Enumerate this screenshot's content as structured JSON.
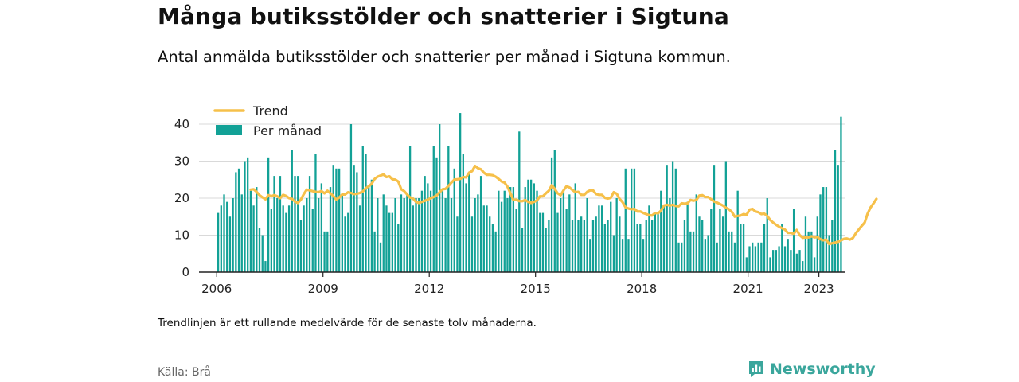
{
  "title": "Många butiksstölder och snatterier i Sigtuna",
  "subtitle": "Antal anmälda butiksstölder och snatterier per månad i Sigtuna kommun.",
  "note": "Trendlinjen är ett rullande medelvärde för de senaste tolv månaderna.",
  "source": "Källa: Brå",
  "brand": "Newsworthy",
  "colors": {
    "bar": "#12a196",
    "trend": "#f6c04a",
    "axis": "#222222",
    "grid": "#d9d9d9",
    "brand": "#3aa69c"
  },
  "chart_data": {
    "type": "bar",
    "title": "",
    "xlabel": "",
    "ylabel": "",
    "ylim": [
      0,
      45
    ],
    "xlim": [
      "2005-07",
      "2023-10"
    ],
    "grid": true,
    "legend_position": "top-left",
    "x_ticks": [
      "2006",
      "2009",
      "2012",
      "2015",
      "2018",
      "2021",
      "2023"
    ],
    "y_ticks": [
      0,
      10,
      20,
      30,
      40
    ],
    "start_month": "2006-01",
    "series": [
      {
        "name": "Per månad",
        "type": "bar",
        "values": [
          16,
          18,
          21,
          19,
          15,
          20,
          27,
          28,
          21,
          30,
          31,
          22,
          18,
          23,
          12,
          10,
          3,
          31,
          17,
          26,
          20,
          26,
          18,
          16,
          18,
          33,
          26,
          26,
          14,
          18,
          20,
          26,
          17,
          32,
          20,
          24,
          11,
          11,
          23,
          29,
          28,
          28,
          21,
          15,
          16,
          40,
          29,
          27,
          18,
          34,
          32,
          23,
          25,
          11,
          20,
          8,
          21,
          18,
          16,
          16,
          20,
          13,
          21,
          20,
          21,
          34,
          18,
          20,
          20,
          22,
          26,
          24,
          22,
          34,
          31,
          40,
          22,
          20,
          34,
          20,
          28,
          15,
          43,
          32,
          24,
          27,
          15,
          20,
          21,
          26,
          18,
          18,
          15,
          13,
          11,
          22,
          19,
          22,
          20,
          23,
          23,
          17,
          38,
          12,
          23,
          25,
          25,
          24,
          22,
          16,
          16,
          12,
          14,
          31,
          33,
          16,
          20,
          22,
          17,
          21,
          14,
          24,
          14,
          15,
          14,
          20,
          9,
          14,
          15,
          18,
          18,
          13,
          14,
          19,
          10,
          20,
          15,
          9,
          28,
          9,
          28,
          28,
          13,
          13,
          9,
          14,
          18,
          14,
          16,
          16,
          22,
          18,
          29,
          20,
          30,
          28,
          8,
          8,
          14,
          19,
          11,
          11,
          21,
          15,
          14,
          9,
          10,
          17,
          29,
          8,
          17,
          15,
          30,
          11,
          11,
          8,
          22,
          13,
          13,
          4,
          7,
          8,
          7,
          8,
          8,
          13,
          20,
          4,
          6,
          6,
          7,
          13,
          7,
          9,
          6,
          17,
          5,
          6,
          3,
          15,
          11,
          11,
          4,
          15,
          21,
          23,
          23,
          10,
          14,
          33,
          29,
          42
        ],
        "color": "#12a196"
      },
      {
        "name": "Trend",
        "type": "line",
        "start_month": "2006-12",
        "values": [
          22.3,
          22.4,
          21.7,
          20.8,
          20.2,
          19.7,
          20.8,
          20.5,
          20.8,
          20.5,
          20.0,
          20.9,
          20.6,
          20.0,
          19.8,
          19.1,
          18.7,
          19.6,
          21.1,
          22.3,
          22.1,
          21.9,
          21.7,
          21.6,
          21.9,
          21.3,
          22.0,
          21.3,
          20.6,
          19.6,
          20.2,
          21.0,
          21.0,
          21.6,
          21.4,
          21.1,
          21.2,
          21.4,
          21.8,
          22.7,
          23.2,
          23.9,
          25.2,
          25.8,
          26.1,
          26.4,
          25.7,
          25.9,
          25.1,
          25.0,
          24.5,
          22.4,
          21.9,
          21.0,
          20.2,
          19.9,
          19.0,
          18.7,
          19.0,
          19.3,
          19.6,
          20.0,
          20.3,
          20.7,
          21.6,
          22.4,
          22.5,
          23.3,
          24.2,
          25.0,
          25.1,
          25.2,
          25.7,
          25.6,
          26.9,
          27.3,
          28.7,
          28.1,
          27.8,
          26.9,
          26.3,
          26.3,
          26.2,
          25.8,
          25.2,
          24.5,
          24.2,
          23.1,
          21.3,
          19.5,
          19.6,
          19.2,
          19.2,
          19.5,
          19.0,
          18.7,
          19.0,
          19.4,
          20.5,
          20.5,
          21.3,
          22.0,
          23.5,
          22.5,
          21.3,
          20.8,
          22.1,
          23.2,
          22.9,
          22.2,
          21.6,
          21.7,
          20.9,
          20.9,
          21.7,
          22.1,
          22.1,
          21.1,
          20.9,
          20.9,
          20.1,
          19.9,
          20.1,
          21.6,
          21.2,
          19.8,
          18.9,
          17.5,
          17.2,
          17.0,
          17.1,
          16.4,
          16.4,
          16.0,
          15.7,
          15.4,
          15.3,
          16.0,
          15.9,
          16.6,
          18.0,
          18.2,
          18.0,
          18.2,
          17.9,
          17.8,
          18.6,
          18.5,
          18.6,
          19.5,
          19.3,
          19.5,
          20.7,
          20.8,
          20.3,
          20.3,
          19.7,
          19.1,
          18.8,
          18.4,
          18.0,
          17.4,
          17.0,
          16.3,
          15.0,
          15.2,
          15.3,
          15.7,
          15.5,
          16.9,
          17.1,
          16.4,
          16.2,
          15.7,
          15.8,
          15.2,
          14.1,
          13.4,
          12.8,
          12.3,
          11.9,
          11.5,
          10.6,
          10.6,
          10.4,
          11.4,
          10.0,
          9.3,
          9.4,
          9.4,
          9.7,
          9.4,
          9.5,
          8.9,
          8.6,
          8.8,
          7.6,
          7.8,
          8.0,
          8.2,
          8.6,
          9.0,
          9.1,
          8.8,
          9.2,
          10.5,
          11.5,
          12.5,
          13.4,
          15.8,
          17.5,
          18.6,
          19.8
        ]
      }
    ]
  }
}
